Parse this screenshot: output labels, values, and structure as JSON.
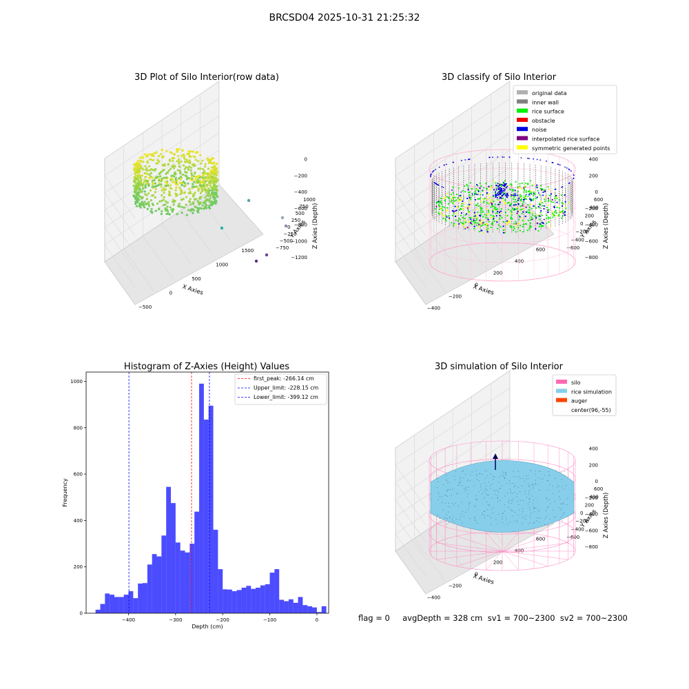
{
  "suptitle": "BRCSD04 2025-10-31 21:25:32",
  "footer": "flag = 0     avgDepth = 328 cm  sv1 = 700~2300  sv2 = 700~2300",
  "chart_data": [
    {
      "type": "scatter",
      "subtype": "3d",
      "title": "3D Plot of Silo Interior(row data)",
      "xlabel": "X Axies",
      "ylabel": "Y Axies",
      "zlabel": "Z Axies (Depth)",
      "x_ticks": [
        "−500",
        "0",
        "500",
        "1000",
        "1500"
      ],
      "y_ticks": [
        "−750",
        "−500",
        "−250",
        "0",
        "250",
        "500",
        "750",
        "1000"
      ],
      "z_ticks": [
        "−1200",
        "−1000",
        "−800",
        "−600",
        "−400",
        "−200",
        "0"
      ],
      "colormap": "viridis",
      "outlier_points": [
        {
          "x": 1000,
          "y": 750,
          "z": -800
        },
        {
          "x": 1600,
          "y": 750,
          "z": -1000
        },
        {
          "x": 1700,
          "y": 900,
          "z": -1100
        },
        {
          "x": 800,
          "y": 200,
          "z": -1100
        },
        {
          "x": 1500,
          "y": -300,
          "z": -1250
        },
        {
          "x": 1400,
          "y": -500,
          "z": -1250
        }
      ]
    },
    {
      "type": "scatter",
      "subtype": "3d",
      "title": "3D classify of Silo Interior",
      "xlabel": "X Axies",
      "ylabel": "Y Axies",
      "zlabel": "Z Axies (Depth)",
      "x_ticks": [
        "−400",
        "−200",
        "0",
        "200",
        "400",
        "600"
      ],
      "y_ticks": [
        "−600",
        "−400",
        "−200",
        "0",
        "200",
        "400",
        "600"
      ],
      "z_ticks": [
        "−800",
        "−600",
        "−400",
        "−200",
        "0",
        "200",
        "400"
      ],
      "legend_position": "top-right",
      "legend": [
        {
          "label": "original data",
          "color": "#b0b0b0"
        },
        {
          "label": "inner wall",
          "color": "#808080"
        },
        {
          "label": "rice surface",
          "color": "#00ee00"
        },
        {
          "label": "obstacle",
          "color": "#ee0000"
        },
        {
          "label": "noise",
          "color": "#0000dd"
        },
        {
          "label": "interpolated rice surface",
          "color": "#800080"
        },
        {
          "label": "symmetric generated points",
          "color": "#ffff00"
        }
      ]
    },
    {
      "type": "bar",
      "subtype": "histogram",
      "title": "Histogram of Z-Axies (Height) Values",
      "xlabel": "Depth (cm)",
      "ylabel": "Frequency",
      "xlim": [
        -490,
        25
      ],
      "ylim": [
        0,
        1040
      ],
      "x_ticks": [
        -400,
        -300,
        -200,
        -100,
        0
      ],
      "x_tick_labels": [
        "−400",
        "−300",
        "−200",
        "−100",
        "0"
      ],
      "y_ticks": [
        0,
        200,
        400,
        600,
        800,
        1000
      ],
      "bar_color": "#0000ff",
      "bin_start": -480,
      "bin_width": 10,
      "values": [
        0,
        15,
        40,
        85,
        80,
        70,
        70,
        80,
        95,
        65,
        128,
        130,
        210,
        255,
        245,
        335,
        545,
        475,
        305,
        270,
        262,
        300,
        438,
        990,
        835,
        895,
        360,
        190,
        103,
        102,
        95,
        100,
        110,
        118,
        105,
        110,
        120,
        125,
        175,
        190,
        58,
        52,
        60,
        45,
        70,
        35,
        30,
        25,
        5,
        30
      ],
      "legend_position": "top-right",
      "vlines": [
        {
          "label": "first_peak: -266.14 cm",
          "x": -266.14,
          "color": "#ff0000"
        },
        {
          "label": "Upper_limit: -228.15 cm",
          "x": -228.15,
          "color": "#0000ff"
        },
        {
          "label": "Lower_limit: -399.12 cm",
          "x": -399.12,
          "color": "#0000ff"
        }
      ]
    },
    {
      "type": "surface",
      "subtype": "3d",
      "title": "3D simulation of Silo Interior",
      "xlabel": "X Axies",
      "ylabel": "Y Axies",
      "zlabel": "Z Axies (Depth)",
      "x_ticks": [
        "−400",
        "−200",
        "0",
        "200",
        "400",
        "600"
      ],
      "y_ticks": [
        "−600",
        "−400",
        "−200",
        "0",
        "200",
        "400",
        "600"
      ],
      "z_ticks": [
        "−800",
        "−600",
        "−400",
        "−200",
        "0",
        "200",
        "400"
      ],
      "legend_position": "top-right",
      "legend": [
        {
          "label": "silo",
          "color": "#ff69b4"
        },
        {
          "label": "rice simulation",
          "color": "#87ceeb"
        },
        {
          "label": "auger",
          "color": "#ff4500"
        },
        {
          "label": "center(96,-55)",
          "color": ""
        }
      ]
    }
  ]
}
